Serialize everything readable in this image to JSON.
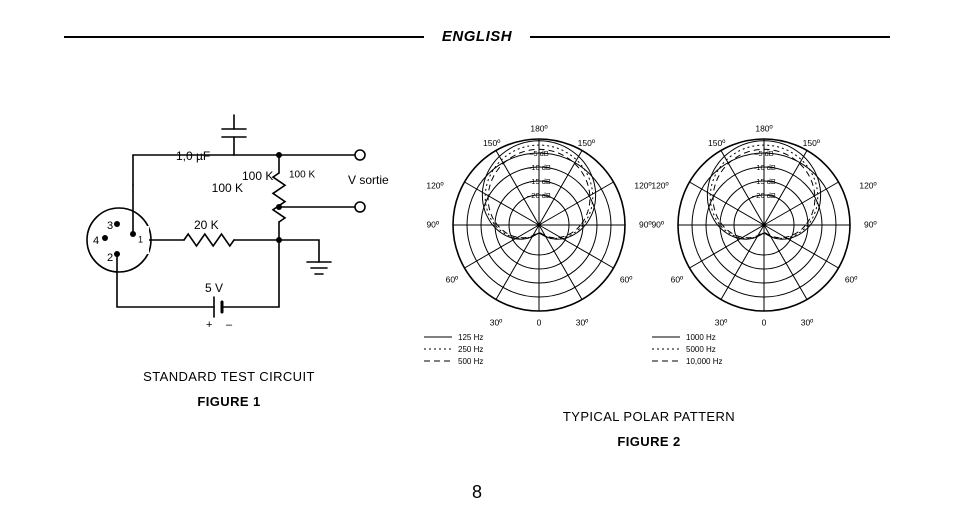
{
  "header": {
    "language": "ENGLISH"
  },
  "page_number": "8",
  "figure1": {
    "title": "STANDARD TEST CIRCUIT",
    "label": "FIGURE 1",
    "labels": {
      "cap": "1,0 µF",
      "r1": "100 K",
      "r2": "20 K",
      "batt": "5 V",
      "out": "V sortie",
      "pin1": "1",
      "pin2": "2",
      "pin3": "3",
      "pin4": "4"
    },
    "stroke": "#000",
    "stroke_width": 1.6
  },
  "figure2": {
    "title": "TYPICAL POLAR PATTERN",
    "label": "FIGURE 2",
    "angle_labels": [
      "180º",
      "150º",
      "150º",
      "120º",
      "120º",
      "90º",
      "90º",
      "60º",
      "60º",
      "30º",
      "30º",
      "0"
    ],
    "db_labels": [
      "–5 dB",
      "–10 dB",
      "–15 dB",
      "–20 dB"
    ],
    "db_radii": [
      72,
      58,
      44,
      30
    ],
    "outer_radius": 86,
    "legend_left": [
      {
        "label": "125 Hz",
        "dash": ""
      },
      {
        "label": "250 Hz",
        "dash": "2 3"
      },
      {
        "label": "500 Hz",
        "dash": "6 4"
      }
    ],
    "legend_right": [
      {
        "label": "1000 Hz",
        "dash": ""
      },
      {
        "label": "5000 Hz",
        "dash": "2 3"
      },
      {
        "label": "10,000 Hz",
        "dash": "6 4"
      }
    ],
    "stroke": "#000"
  }
}
